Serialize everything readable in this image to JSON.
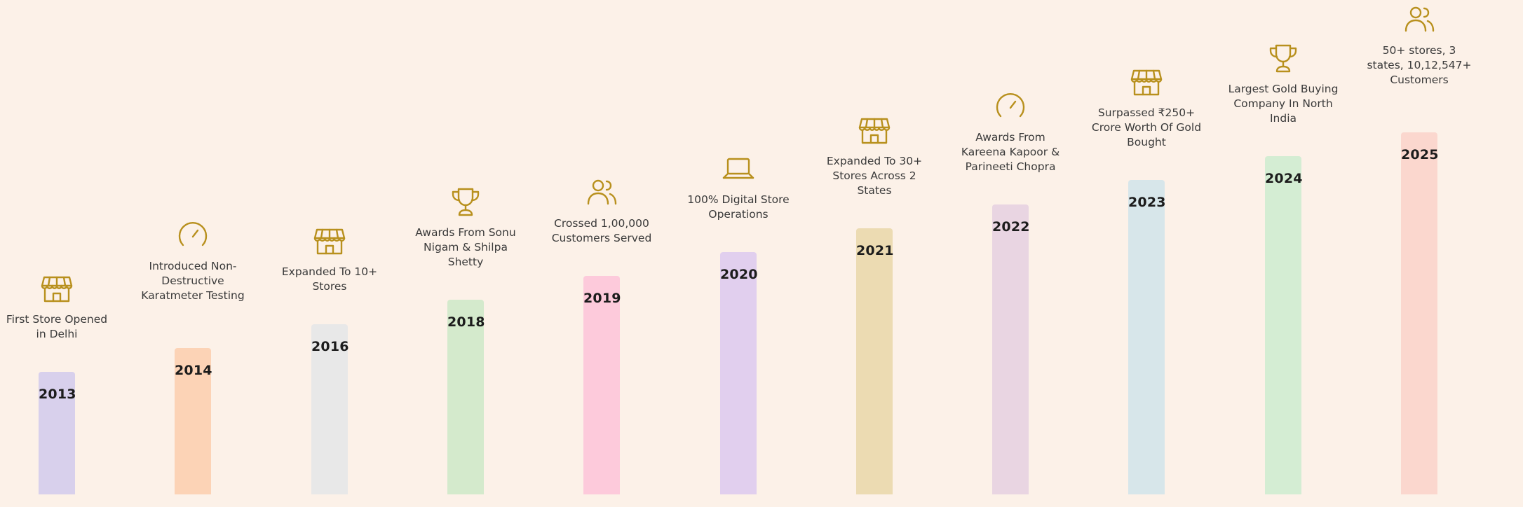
{
  "chart_data": {
    "type": "bar",
    "categories": [
      "2013",
      "2014",
      "2016",
      "2018",
      "2019",
      "2020",
      "2021",
      "2022",
      "2023",
      "2024",
      "2025"
    ],
    "milestones": [
      {
        "year": "2013",
        "text": "First Store Opened in Delhi",
        "icon": "store-icon",
        "color": "#d8d0ec"
      },
      {
        "year": "2014",
        "text": "Introduced Non-Destructive Karatmeter Testing",
        "icon": "gauge-icon",
        "color": "#fcd3b6"
      },
      {
        "year": "2016",
        "text": "Expanded To 10+ Stores",
        "icon": "store-icon",
        "color": "#e8e8e8"
      },
      {
        "year": "2018",
        "text": "Awards From Sonu Nigam & Shilpa Shetty",
        "icon": "trophy-icon",
        "color": "#d4eacc"
      },
      {
        "year": "2019",
        "text": "Crossed 1,00,000 Customers Served",
        "icon": "users-icon",
        "color": "#fdcadb"
      },
      {
        "year": "2020",
        "text": "100% Digital Store Operations",
        "icon": "laptop-icon",
        "color": "#e1cfee"
      },
      {
        "year": "2021",
        "text": "Expanded To 30+ Stores Across 2 States",
        "icon": "store-icon",
        "color": "#ecdbb2"
      },
      {
        "year": "2022",
        "text": "Awards From Kareena Kapoor & Parineeti Chopra",
        "icon": "gauge-icon",
        "color": "#e9d5e2"
      },
      {
        "year": "2023",
        "text": "Surpassed ₹250+ Crore Worth Of Gold Bought",
        "icon": "store-icon",
        "color": "#d7e6ea"
      },
      {
        "year": "2024",
        "text": "Largest Gold Buying Company In North India",
        "icon": "trophy-icon",
        "color": "#d4edd3"
      },
      {
        "year": "2025",
        "text": "50+ stores, 3 states, 10,12,547+ Customers",
        "icon": "users-icon",
        "color": "#fbd7ce"
      }
    ],
    "colors": {
      "background": "#fcf1e8",
      "icon": "#b8901d"
    }
  }
}
